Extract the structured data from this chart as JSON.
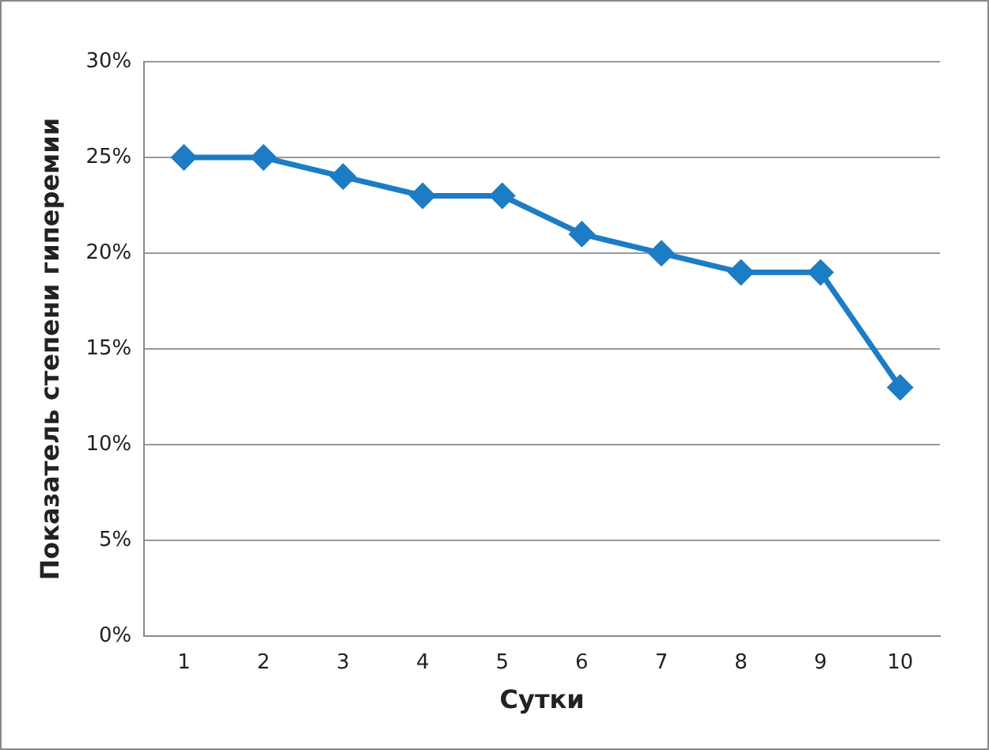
{
  "chart_data": {
    "type": "line",
    "xlabel": "Сутки",
    "ylabel": "Показатель степени гиперемии",
    "categories": [
      "1",
      "2",
      "3",
      "4",
      "5",
      "6",
      "7",
      "8",
      "9",
      "10"
    ],
    "series": [
      {
        "color": "#1c7cc4",
        "values": [
          25,
          25,
          24,
          23,
          23,
          21,
          20,
          19,
          19,
          13
        ]
      }
    ],
    "ylim": [
      0,
      30
    ],
    "yticks": [
      {
        "value": 0,
        "label": "0%"
      },
      {
        "value": 5,
        "label": "5%"
      },
      {
        "value": 10,
        "label": "10%"
      },
      {
        "value": 15,
        "label": "15%"
      },
      {
        "value": 20,
        "label": "20%"
      },
      {
        "value": 25,
        "label": "25%"
      },
      {
        "value": 30,
        "label": "30%"
      }
    ],
    "grid": "y",
    "legend": false,
    "marker": "diamond",
    "line_style": "solid"
  }
}
